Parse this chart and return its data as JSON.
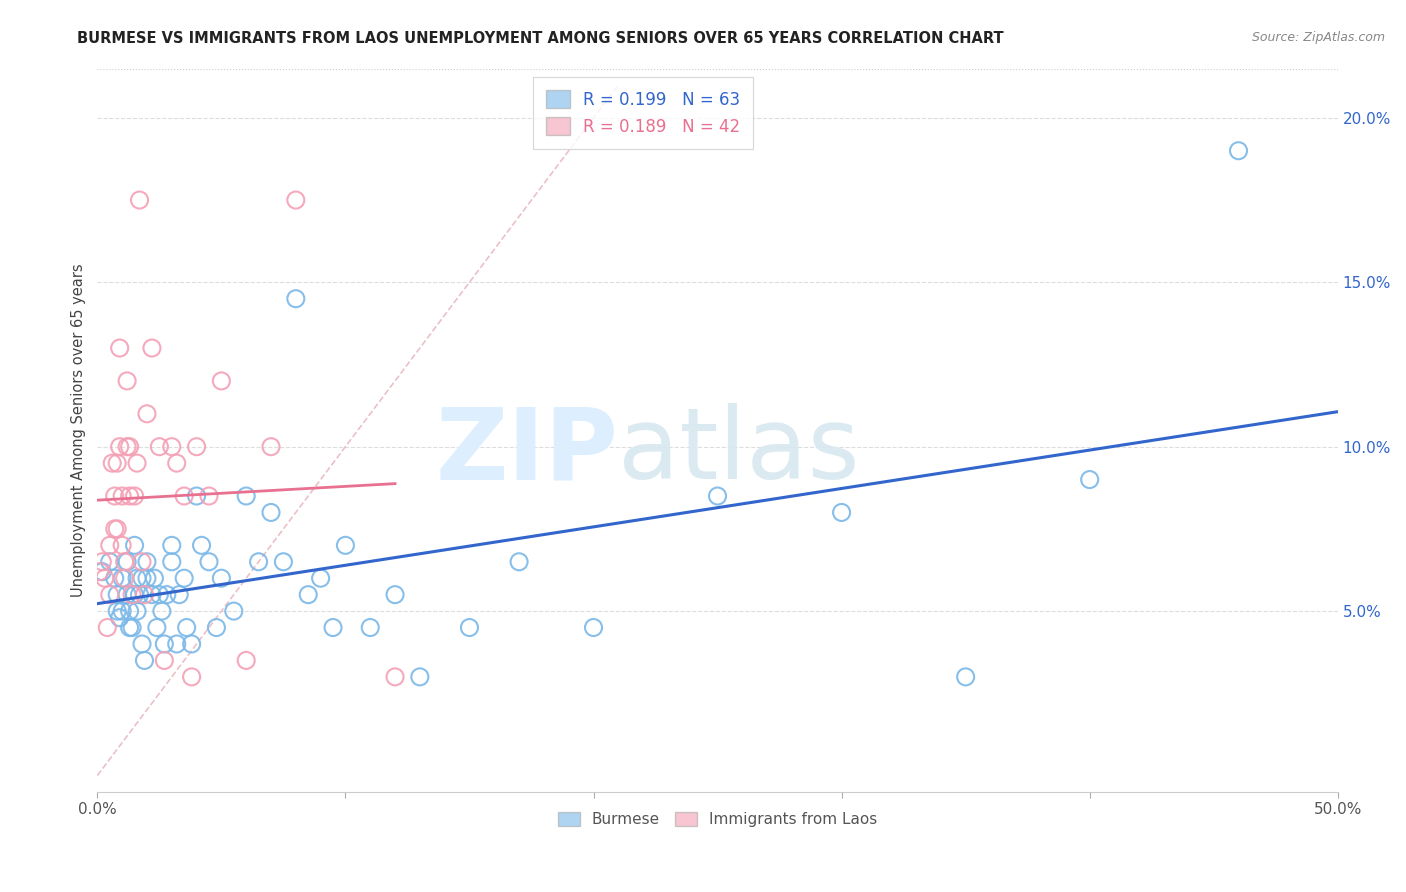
{
  "title": "BURMESE VS IMMIGRANTS FROM LAOS UNEMPLOYMENT AMONG SENIORS OVER 65 YEARS CORRELATION CHART",
  "source": "Source: ZipAtlas.com",
  "ylabel": "Unemployment Among Seniors over 65 years",
  "xlim": [
    0.0,
    0.5
  ],
  "ylim": [
    -0.005,
    0.215
  ],
  "x_ticks": [
    0.0,
    0.1,
    0.2,
    0.3,
    0.4,
    0.5
  ],
  "x_tick_labels": [
    "0.0%",
    "",
    "",
    "",
    "",
    "50.0%"
  ],
  "y_ticks_right": [
    0.05,
    0.1,
    0.15,
    0.2
  ],
  "y_tick_labels_right": [
    "5.0%",
    "10.0%",
    "15.0%",
    "20.0%"
  ],
  "legend_labels": [
    "Burmese",
    "Immigrants from Laos"
  ],
  "burmese_color": "#7ab8e8",
  "laos_color": "#f4a0b5",
  "burmese_line_color": "#3366cc",
  "laos_line_color": "#e87090",
  "burmese_R": 0.199,
  "burmese_N": 63,
  "laos_R": 0.189,
  "laos_N": 42,
  "burmese_x": [
    0.002,
    0.005,
    0.007,
    0.008,
    0.008,
    0.009,
    0.01,
    0.01,
    0.012,
    0.012,
    0.013,
    0.013,
    0.014,
    0.015,
    0.015,
    0.016,
    0.016,
    0.017,
    0.018,
    0.018,
    0.019,
    0.02,
    0.02,
    0.022,
    0.023,
    0.024,
    0.025,
    0.026,
    0.027,
    0.028,
    0.03,
    0.03,
    0.032,
    0.033,
    0.035,
    0.036,
    0.038,
    0.04,
    0.042,
    0.045,
    0.048,
    0.05,
    0.055,
    0.06,
    0.065,
    0.07,
    0.075,
    0.08,
    0.085,
    0.09,
    0.095,
    0.1,
    0.11,
    0.12,
    0.13,
    0.15,
    0.17,
    0.2,
    0.25,
    0.3,
    0.35,
    0.4,
    0.46
  ],
  "burmese_y": [
    0.062,
    0.065,
    0.06,
    0.055,
    0.05,
    0.048,
    0.06,
    0.05,
    0.065,
    0.055,
    0.05,
    0.045,
    0.045,
    0.07,
    0.055,
    0.06,
    0.05,
    0.055,
    0.04,
    0.06,
    0.035,
    0.065,
    0.06,
    0.055,
    0.06,
    0.045,
    0.055,
    0.05,
    0.04,
    0.055,
    0.065,
    0.07,
    0.04,
    0.055,
    0.06,
    0.045,
    0.04,
    0.085,
    0.07,
    0.065,
    0.045,
    0.06,
    0.05,
    0.085,
    0.065,
    0.08,
    0.065,
    0.145,
    0.055,
    0.06,
    0.045,
    0.07,
    0.045,
    0.055,
    0.03,
    0.045,
    0.065,
    0.045,
    0.085,
    0.08,
    0.03,
    0.09,
    0.19
  ],
  "laos_x": [
    0.001,
    0.002,
    0.003,
    0.004,
    0.005,
    0.005,
    0.006,
    0.007,
    0.007,
    0.008,
    0.008,
    0.009,
    0.009,
    0.01,
    0.01,
    0.011,
    0.011,
    0.012,
    0.012,
    0.013,
    0.013,
    0.014,
    0.015,
    0.016,
    0.017,
    0.018,
    0.019,
    0.02,
    0.022,
    0.025,
    0.027,
    0.03,
    0.032,
    0.035,
    0.038,
    0.04,
    0.045,
    0.05,
    0.06,
    0.07,
    0.08,
    0.12
  ],
  "laos_y": [
    0.062,
    0.065,
    0.06,
    0.045,
    0.07,
    0.055,
    0.095,
    0.085,
    0.075,
    0.095,
    0.075,
    0.13,
    0.1,
    0.085,
    0.07,
    0.065,
    0.06,
    0.12,
    0.1,
    0.1,
    0.085,
    0.055,
    0.085,
    0.095,
    0.175,
    0.065,
    0.055,
    0.11,
    0.13,
    0.1,
    0.035,
    0.1,
    0.095,
    0.085,
    0.03,
    0.1,
    0.085,
    0.12,
    0.035,
    0.1,
    0.175,
    0.03
  ]
}
